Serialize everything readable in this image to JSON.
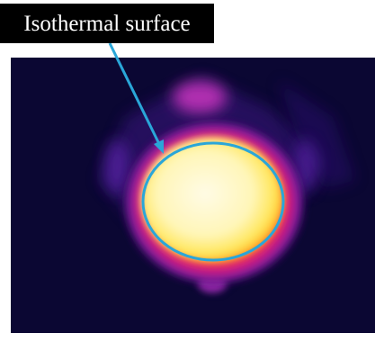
{
  "label": "Isothermal surface"
}
